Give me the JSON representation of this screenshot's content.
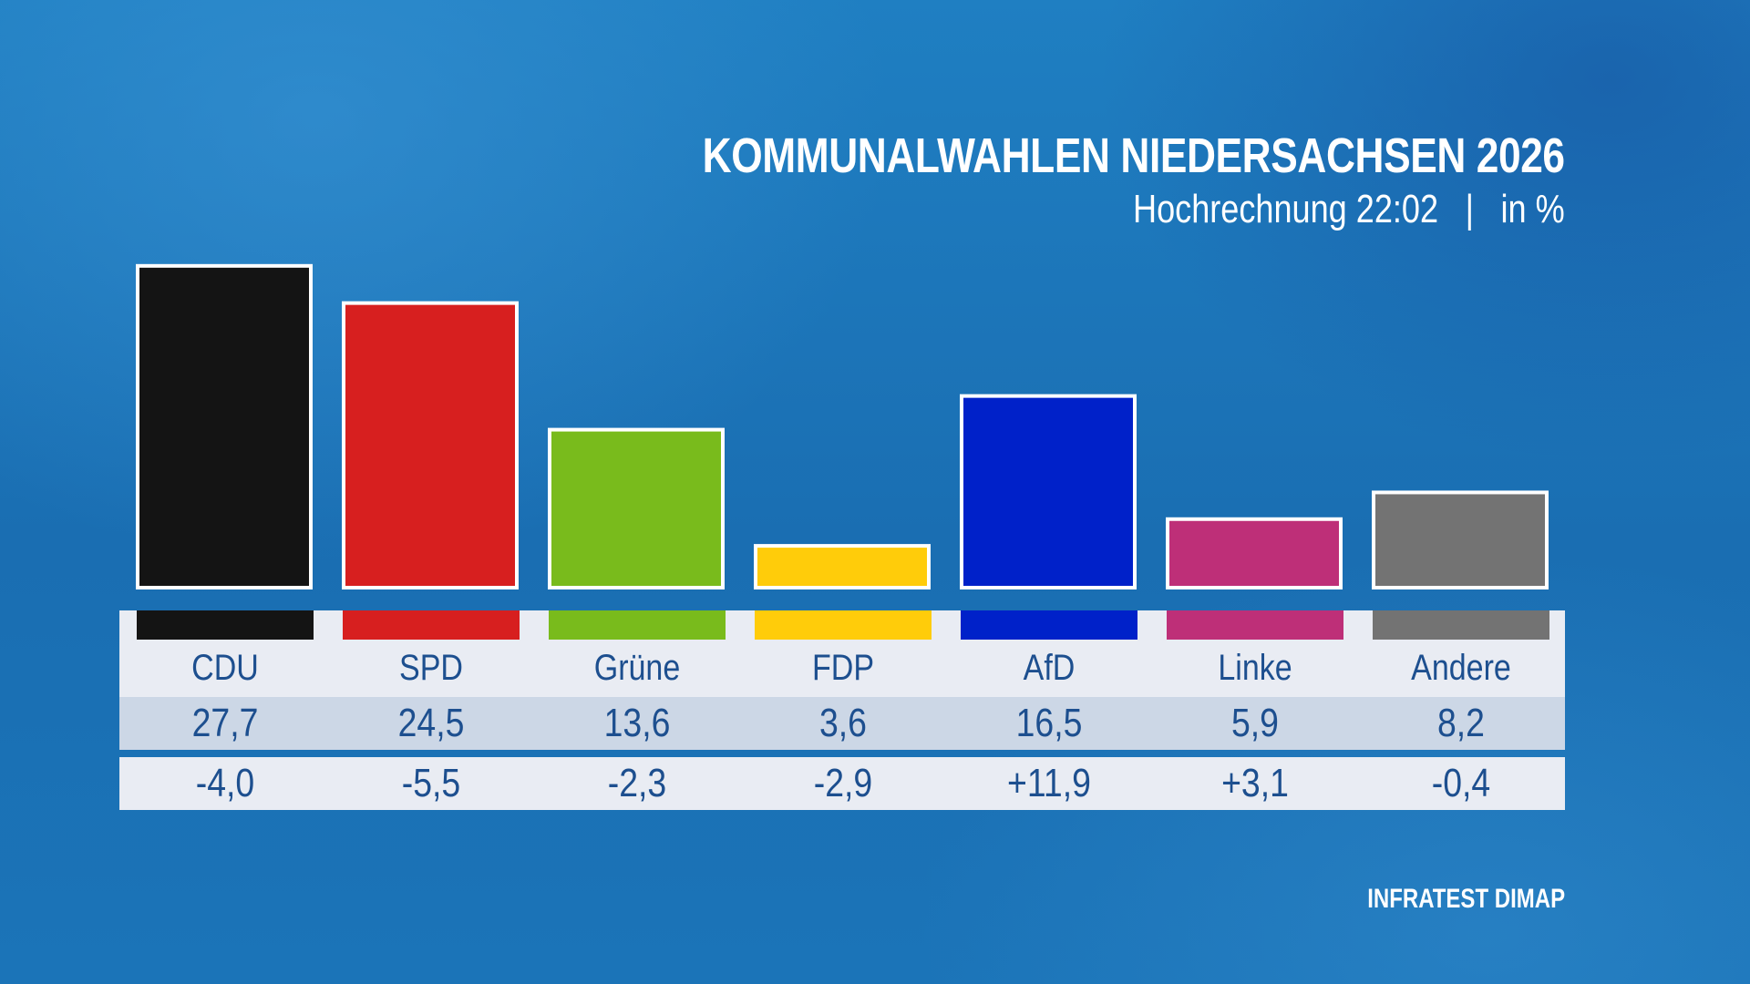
{
  "chart_data": {
    "type": "bar",
    "title": "KOMMUNALWAHLEN NIEDERSACHSEN 2026",
    "subtitle": "Hochrechnung 22:02",
    "subtitle_unit": "in %",
    "categories": [
      "CDU",
      "SPD",
      "Grüne",
      "FDP",
      "AfD",
      "Linke",
      "Andere"
    ],
    "values": [
      27.7,
      24.5,
      13.6,
      3.6,
      16.5,
      5.9,
      8.2
    ],
    "value_labels": [
      "27,7",
      "24,5",
      "13,6",
      "3,6",
      "16,5",
      "5,9",
      "8,2"
    ],
    "change_labels": [
      "-4,0",
      "-5,5",
      "-2,3",
      "-2,9",
      "+11,9",
      "+3,1",
      "-0,4"
    ],
    "colors": [
      "#141414",
      "#d71f1f",
      "#79bb1c",
      "#ffcc0a",
      "#0021c9",
      "#be2f78",
      "#737373"
    ],
    "grid": false,
    "legend": "none"
  },
  "source": "INFRATEST DIMAP"
}
